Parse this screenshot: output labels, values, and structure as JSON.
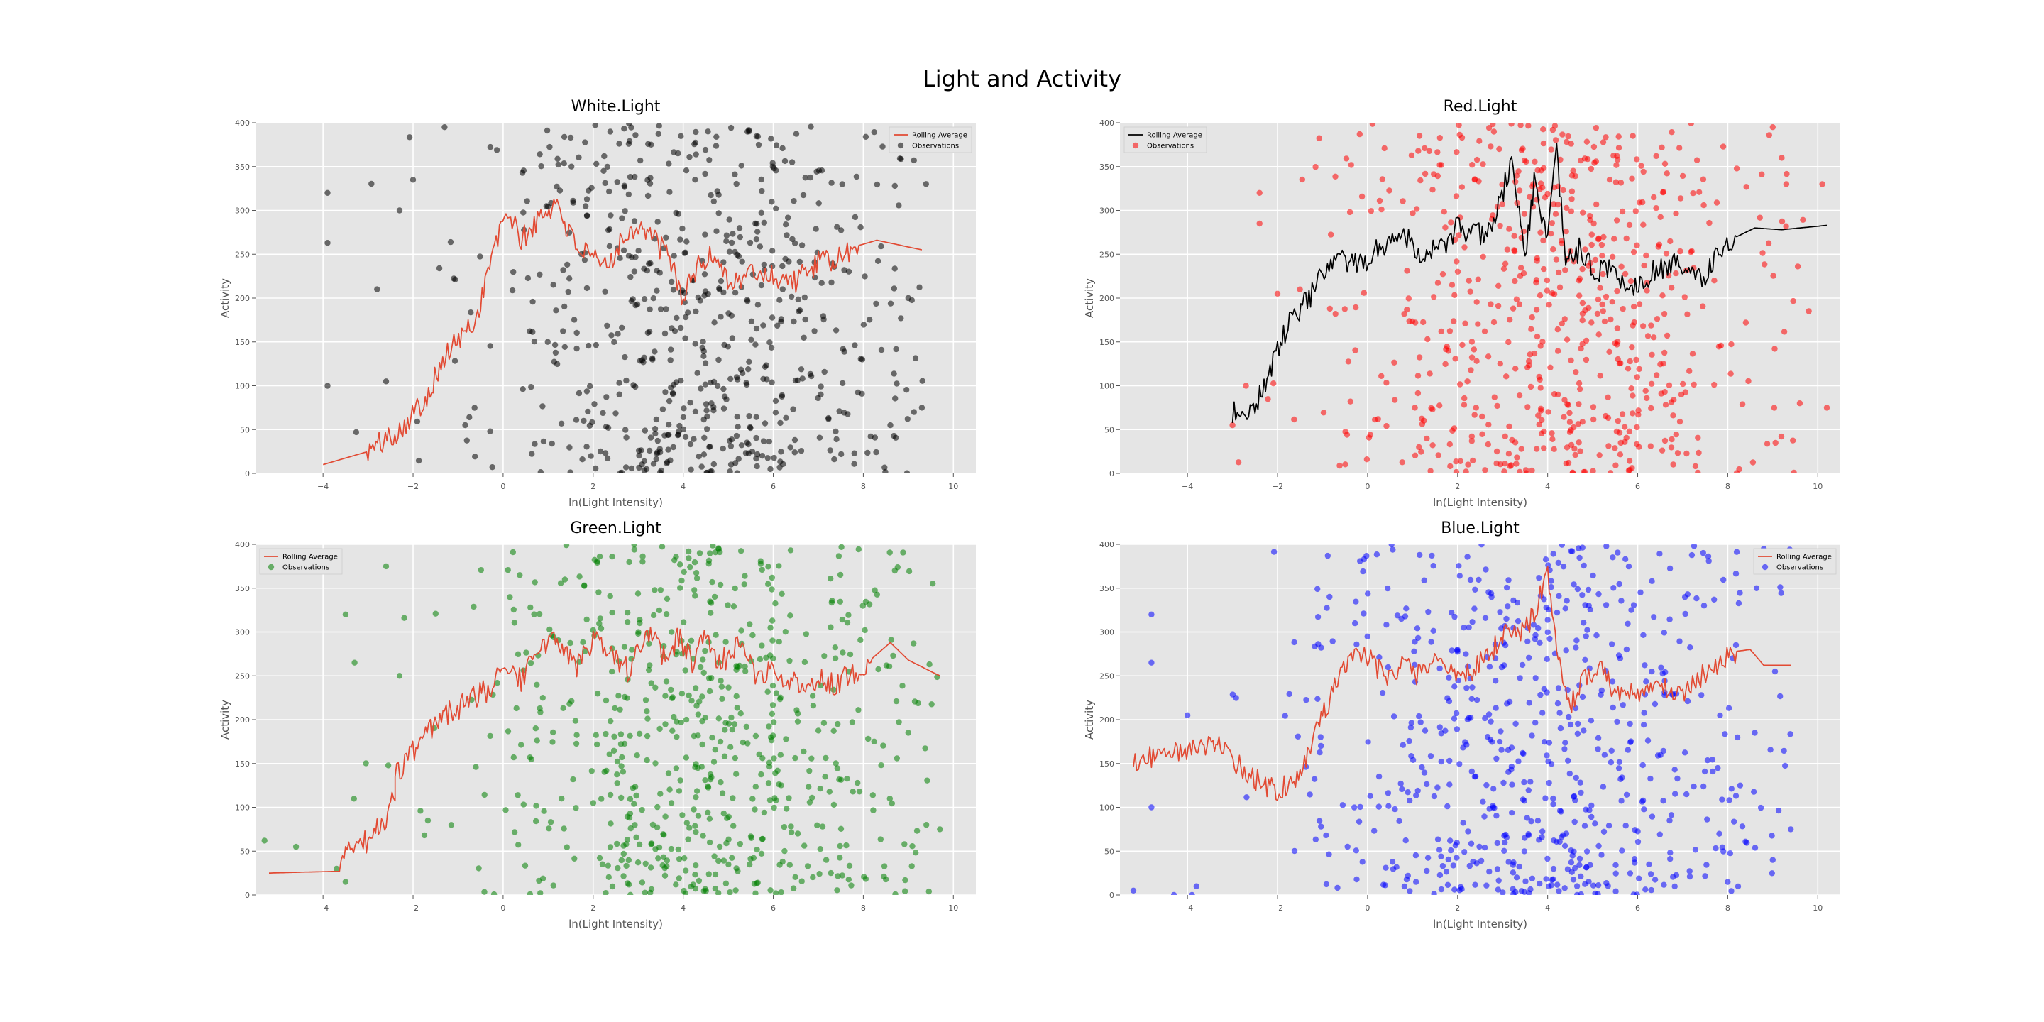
{
  "figure": {
    "title": "Light and Activity"
  },
  "chart_data": [
    {
      "type": "scatter",
      "title": "White.Light",
      "xlabel": "ln(Light Intensity)",
      "ylabel": "Activity",
      "xlim": [
        -5.5,
        10.5
      ],
      "ylim": [
        0,
        400
      ],
      "xticks": [
        -4,
        -2,
        0,
        2,
        4,
        6,
        8,
        10
      ],
      "yticks": [
        0,
        50,
        100,
        150,
        200,
        250,
        300,
        350,
        400
      ],
      "grid": true,
      "legend_position": "top-right",
      "colors": {
        "observations": "#000000",
        "rolling": "#e24a33"
      },
      "observations": {
        "name": "Observations",
        "cloud": {
          "center": 4.2,
          "spread": 2.4,
          "x_min": -4.0,
          "x_max": 9.4,
          "count": 620,
          "seed": 11
        },
        "points": [
          [
            -3.9,
            320
          ],
          [
            -3.9,
            263
          ],
          [
            -3.9,
            100
          ],
          [
            -2.0,
            335
          ],
          [
            -2.3,
            300
          ],
          [
            -1.3,
            395
          ],
          [
            8.7,
            328
          ],
          [
            9.0,
            200
          ],
          [
            9.3,
            75
          ],
          [
            8.6,
            55
          ],
          [
            -2.8,
            210
          ],
          [
            -2.6,
            105
          ]
        ]
      },
      "rolling": {
        "name": "Rolling Average",
        "anchors": [
          [
            -4.0,
            10
          ],
          [
            -3.0,
            25
          ],
          [
            -2.3,
            50
          ],
          [
            -1.8,
            80
          ],
          [
            -1.2,
            140
          ],
          [
            -0.6,
            175
          ],
          [
            -0.3,
            240
          ],
          [
            0.1,
            300
          ],
          [
            0.4,
            265
          ],
          [
            0.8,
            290
          ],
          [
            1.2,
            310
          ],
          [
            1.5,
            270
          ],
          [
            1.9,
            245
          ],
          [
            2.3,
            235
          ],
          [
            2.6,
            265
          ],
          [
            3.0,
            285
          ],
          [
            3.3,
            270
          ],
          [
            3.7,
            245
          ],
          [
            4.0,
            200
          ],
          [
            4.3,
            235
          ],
          [
            4.7,
            250
          ],
          [
            5.1,
            215
          ],
          [
            5.5,
            230
          ],
          [
            6.0,
            225
          ],
          [
            6.5,
            220
          ],
          [
            7.0,
            240
          ],
          [
            7.5,
            245
          ],
          [
            7.9,
            260
          ],
          [
            8.3,
            266
          ],
          [
            9.3,
            255
          ]
        ],
        "noise": 14,
        "seed": 101
      }
    },
    {
      "type": "scatter",
      "title": "Red.Light",
      "xlabel": "ln(Light Intensity)",
      "ylabel": "Activity",
      "xlim": [
        -5.5,
        10.5
      ],
      "ylim": [
        0,
        400
      ],
      "xticks": [
        -4,
        -2,
        0,
        2,
        4,
        6,
        8,
        10
      ],
      "yticks": [
        0,
        50,
        100,
        150,
        200,
        250,
        300,
        350,
        400
      ],
      "grid": true,
      "legend_position": "top-left",
      "colors": {
        "observations": "#ff0000",
        "rolling": "#000000"
      },
      "observations": {
        "name": "Observations",
        "cloud": {
          "center": 4.3,
          "spread": 2.3,
          "x_min": -3.0,
          "x_max": 10.2,
          "count": 620,
          "seed": 22
        },
        "points": [
          [
            -3.0,
            55
          ],
          [
            -2.7,
            100
          ],
          [
            -2.4,
            320
          ],
          [
            -2.4,
            285
          ],
          [
            -2.0,
            205
          ],
          [
            9.0,
            395
          ],
          [
            9.2,
            360
          ],
          [
            9.3,
            330
          ],
          [
            9.8,
            185
          ],
          [
            10.2,
            75
          ],
          [
            9.6,
            80
          ],
          [
            10.1,
            330
          ]
        ]
      },
      "rolling": {
        "name": "Rolling Average",
        "anchors": [
          [
            -3.0,
            68
          ],
          [
            -2.5,
            75
          ],
          [
            -2.3,
            100
          ],
          [
            -2.0,
            140
          ],
          [
            -1.7,
            175
          ],
          [
            -1.3,
            200
          ],
          [
            -1.0,
            225
          ],
          [
            -0.6,
            245
          ],
          [
            -0.2,
            235
          ],
          [
            0.3,
            260
          ],
          [
            0.8,
            275
          ],
          [
            1.2,
            250
          ],
          [
            1.6,
            255
          ],
          [
            2.0,
            280
          ],
          [
            2.4,
            270
          ],
          [
            2.8,
            285
          ],
          [
            3.2,
            355
          ],
          [
            3.5,
            250
          ],
          [
            3.7,
            330
          ],
          [
            4.0,
            270
          ],
          [
            4.2,
            365
          ],
          [
            4.4,
            240
          ],
          [
            4.7,
            255
          ],
          [
            5.0,
            230
          ],
          [
            5.4,
            235
          ],
          [
            5.8,
            210
          ],
          [
            6.2,
            225
          ],
          [
            6.7,
            240
          ],
          [
            7.1,
            230
          ],
          [
            7.5,
            225
          ],
          [
            7.8,
            255
          ],
          [
            8.2,
            270
          ],
          [
            8.6,
            280
          ],
          [
            9.2,
            278
          ],
          [
            10.2,
            283
          ]
        ],
        "noise": 14,
        "seed": 202
      }
    },
    {
      "type": "scatter",
      "title": "Green.Light",
      "xlabel": "ln(Light Intensity)",
      "ylabel": "Activity",
      "xlim": [
        -5.5,
        10.5
      ],
      "ylim": [
        0,
        400
      ],
      "xticks": [
        -4,
        -2,
        0,
        2,
        4,
        6,
        8,
        10
      ],
      "yticks": [
        0,
        50,
        100,
        150,
        200,
        250,
        300,
        350,
        400
      ],
      "grid": true,
      "legend_position": "top-left",
      "colors": {
        "observations": "#008000",
        "rolling": "#e24a33"
      },
      "observations": {
        "name": "Observations",
        "cloud": {
          "center": 4.3,
          "spread": 2.4,
          "x_min": -3.6,
          "x_max": 9.7,
          "count": 640,
          "seed": 33
        },
        "points": [
          [
            -5.3,
            62
          ],
          [
            -4.6,
            55
          ],
          [
            -3.5,
            320
          ],
          [
            -3.3,
            265
          ],
          [
            -2.6,
            375
          ],
          [
            -2.3,
            250
          ],
          [
            9.0,
            185
          ],
          [
            9.4,
            80
          ],
          [
            9.7,
            75
          ],
          [
            8.7,
            370
          ],
          [
            -3.7,
            30
          ],
          [
            -3.5,
            15
          ]
        ]
      },
      "rolling": {
        "name": "Rolling Average",
        "anchors": [
          [
            -5.2,
            25
          ],
          [
            -4.5,
            26
          ],
          [
            -3.6,
            27
          ],
          [
            -3.5,
            55
          ],
          [
            -3.0,
            62
          ],
          [
            -2.7,
            80
          ],
          [
            -2.4,
            110
          ],
          [
            -2.4,
            135
          ],
          [
            -1.9,
            170
          ],
          [
            -1.3,
            205
          ],
          [
            -0.8,
            220
          ],
          [
            -0.3,
            235
          ],
          [
            0.0,
            265
          ],
          [
            0.4,
            245
          ],
          [
            0.8,
            280
          ],
          [
            1.2,
            295
          ],
          [
            1.6,
            260
          ],
          [
            2.0,
            290
          ],
          [
            2.4,
            270
          ],
          [
            2.8,
            255
          ],
          [
            3.2,
            300
          ],
          [
            3.6,
            270
          ],
          [
            3.9,
            295
          ],
          [
            4.2,
            265
          ],
          [
            4.5,
            305
          ],
          [
            4.8,
            260
          ],
          [
            5.2,
            290
          ],
          [
            5.6,
            250
          ],
          [
            6.0,
            255
          ],
          [
            6.5,
            240
          ],
          [
            7.0,
            245
          ],
          [
            7.4,
            240
          ],
          [
            7.8,
            255
          ],
          [
            8.2,
            270
          ],
          [
            8.6,
            288
          ],
          [
            9.0,
            268
          ],
          [
            9.5,
            255
          ],
          [
            9.7,
            250
          ]
        ],
        "noise": 14,
        "seed": 303
      }
    },
    {
      "type": "scatter",
      "title": "Blue.Light",
      "xlabel": "ln(Light Intensity)",
      "ylabel": "Activity",
      "xlim": [
        -5.5,
        10.5
      ],
      "ylim": [
        0,
        400
      ],
      "xticks": [
        -4,
        -2,
        0,
        2,
        4,
        6,
        8,
        10
      ],
      "yticks": [
        0,
        50,
        100,
        150,
        200,
        250,
        300,
        350,
        400
      ],
      "grid": true,
      "legend_position": "top-right",
      "colors": {
        "observations": "#0000ff",
        "rolling": "#e24a33"
      },
      "observations": {
        "name": "Observations",
        "cloud": {
          "center": 3.9,
          "spread": 2.6,
          "x_min": -3.8,
          "x_max": 9.4,
          "count": 640,
          "seed": 44
        },
        "points": [
          [
            -5.2,
            5
          ],
          [
            -4.8,
            320
          ],
          [
            -4.8,
            265
          ],
          [
            -4.8,
            100
          ],
          [
            -4.3,
            0
          ],
          [
            -3.9,
            0
          ],
          [
            8.8,
            395
          ],
          [
            9.0,
            40
          ],
          [
            9.4,
            75
          ],
          [
            8.6,
            185
          ],
          [
            -4.0,
            205
          ],
          [
            -3.8,
            10
          ]
        ]
      },
      "rolling": {
        "name": "Rolling Average",
        "anchors": [
          [
            -5.2,
            150
          ],
          [
            -4.8,
            158
          ],
          [
            -4.3,
            163
          ],
          [
            -3.7,
            165
          ],
          [
            -3.4,
            175
          ],
          [
            -3.1,
            160
          ],
          [
            -2.7,
            140
          ],
          [
            -2.3,
            125
          ],
          [
            -2.0,
            118
          ],
          [
            -1.6,
            135
          ],
          [
            -1.3,
            160
          ],
          [
            -1.0,
            205
          ],
          [
            -0.7,
            240
          ],
          [
            -0.4,
            275
          ],
          [
            0.0,
            270
          ],
          [
            0.4,
            250
          ],
          [
            0.8,
            260
          ],
          [
            1.2,
            250
          ],
          [
            1.6,
            270
          ],
          [
            2.0,
            245
          ],
          [
            2.4,
            260
          ],
          [
            2.8,
            280
          ],
          [
            3.1,
            305
          ],
          [
            3.4,
            295
          ],
          [
            3.7,
            320
          ],
          [
            4.0,
            370
          ],
          [
            4.2,
            280
          ],
          [
            4.5,
            215
          ],
          [
            4.8,
            250
          ],
          [
            5.2,
            255
          ],
          [
            5.6,
            225
          ],
          [
            6.0,
            230
          ],
          [
            6.5,
            235
          ],
          [
            7.0,
            230
          ],
          [
            7.4,
            250
          ],
          [
            7.8,
            265
          ],
          [
            8.2,
            278
          ],
          [
            8.5,
            280
          ],
          [
            8.8,
            262
          ],
          [
            9.4,
            262
          ]
        ],
        "noise": 13,
        "seed": 404
      }
    }
  ]
}
